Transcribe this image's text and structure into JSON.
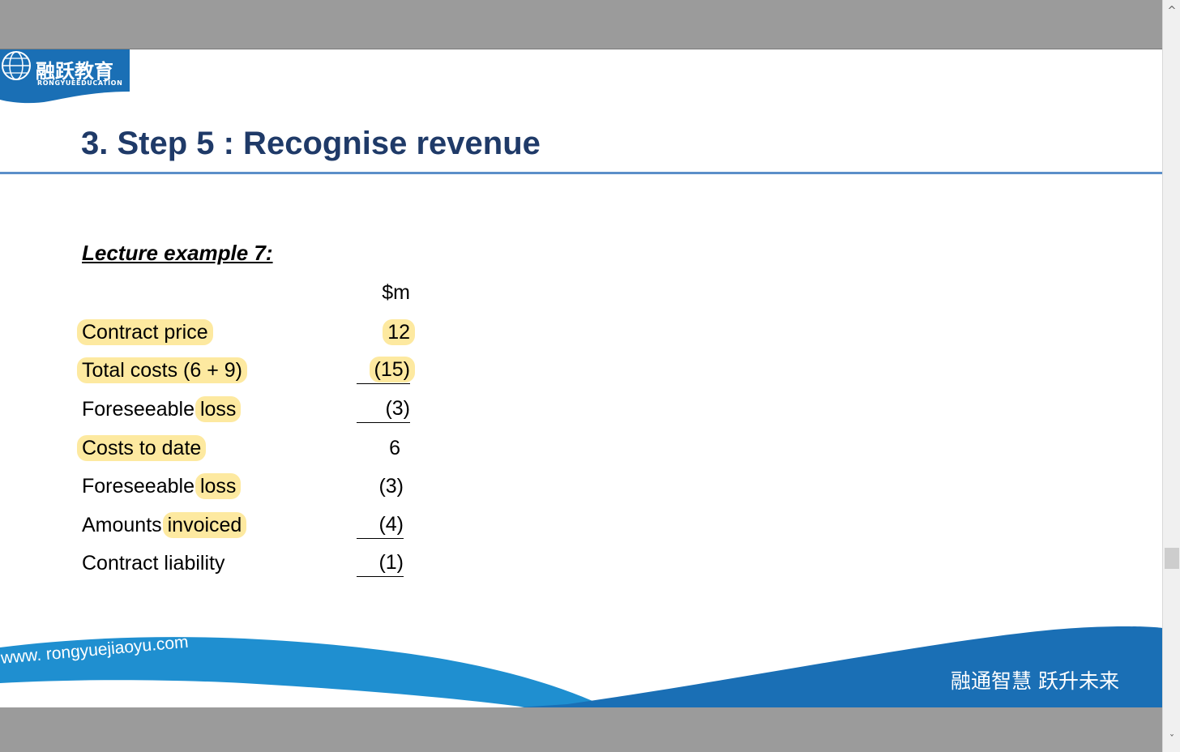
{
  "logo": {
    "chinese_name": "融跃教育",
    "english_name": "RONGYUEEDUCATION"
  },
  "slide": {
    "title": "3.  Step 5 : Recognise revenue",
    "example_heading": "Lecture example 7:",
    "unit_header": "$m",
    "rows": [
      {
        "label": "Contract price",
        "value": "12"
      },
      {
        "label": "Total costs (6 + 9)",
        "value": "(15)"
      },
      {
        "label_plain": "Foreseeable ",
        "label_highlight": "loss",
        "value": "(3)"
      },
      {
        "label": "Costs to date",
        "value": "6"
      },
      {
        "label_plain": "Foreseeable ",
        "label_highlight": "loss",
        "value": "(3)"
      },
      {
        "label_plain": "Amounts ",
        "label_highlight": "invoiced",
        "value": "(4)"
      },
      {
        "label": "Contract liability",
        "value": "(1)"
      }
    ]
  },
  "footer": {
    "website": "www. rongyuejiaoyu.com",
    "slogan": "融通智慧  跃升未来"
  },
  "colors": {
    "title": "#1f3a68",
    "brand_blue": "#1a6fb5",
    "highlight": "#fde9a0",
    "rule": "#5b8fc9"
  },
  "scrollbar": {
    "up_icon": "chevron-up-icon",
    "down_icon": "chevron-down-icon"
  }
}
